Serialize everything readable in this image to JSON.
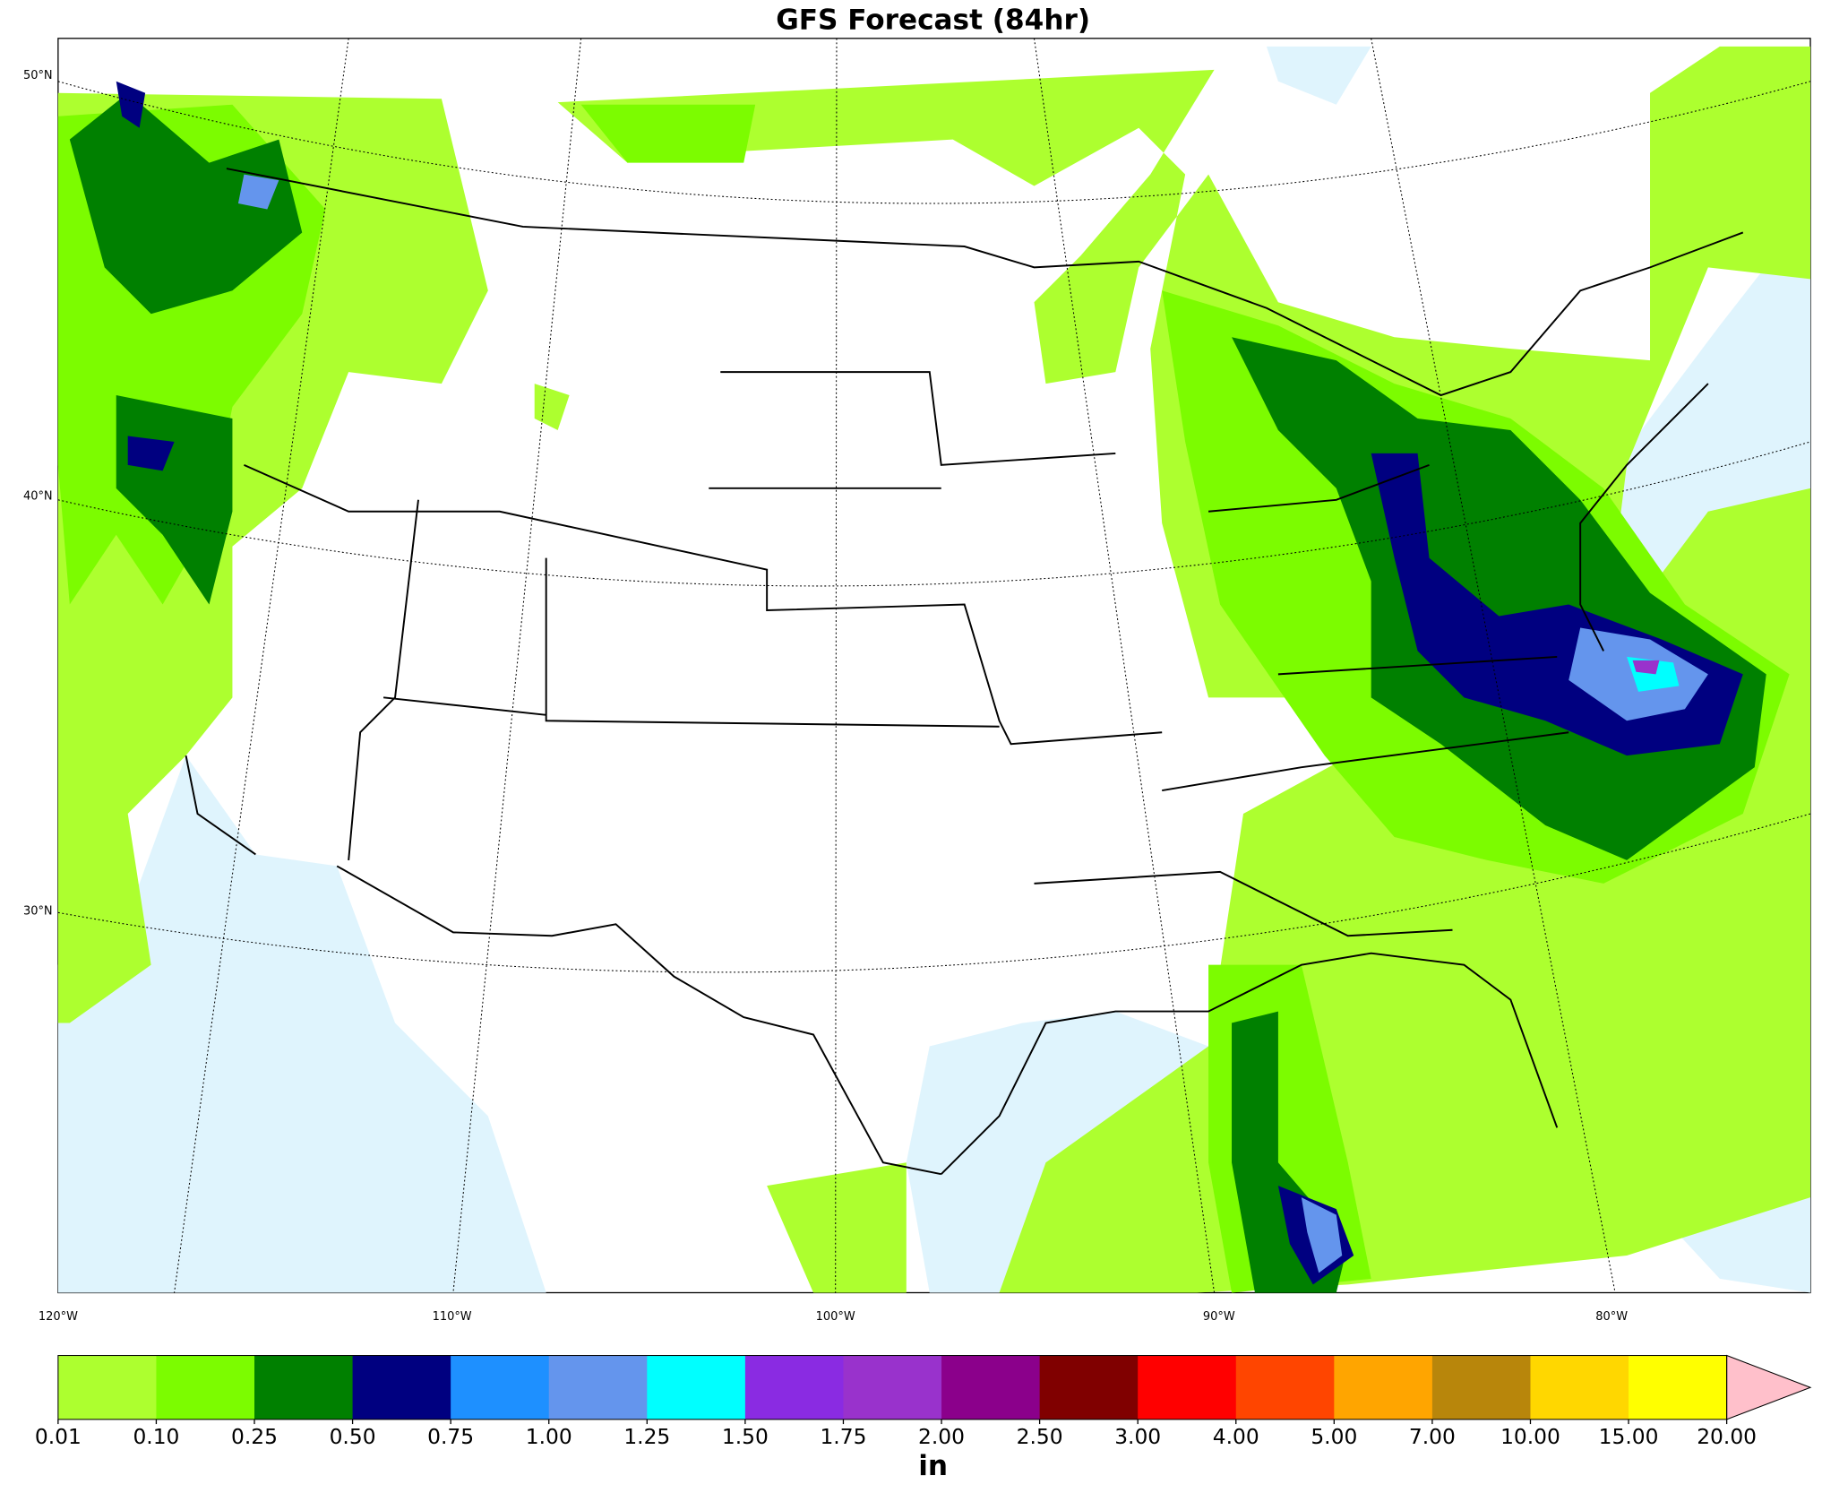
{
  "header": {
    "title": "GFS Forecast (84hr)"
  },
  "map": {
    "lat_labels": [
      "50°N",
      "40°N",
      "30°N"
    ],
    "lon_labels": [
      "120°W",
      "110°W",
      "100°W",
      "90°W",
      "80°W"
    ]
  },
  "colorbar": {
    "unit": "in",
    "levels": [
      "0.01",
      "0.10",
      "0.25",
      "0.50",
      "0.75",
      "1.00",
      "1.25",
      "1.50",
      "1.75",
      "2.00",
      "2.50",
      "3.00",
      "4.00",
      "5.00",
      "7.00",
      "10.00",
      "15.00",
      "20.00"
    ],
    "colors": [
      "#adff2f",
      "#7cfc00",
      "#008000",
      "#000080",
      "#1e90ff",
      "#6495ed",
      "#00ffff",
      "#8a2be2",
      "#9932cc",
      "#8b008b",
      "#800000",
      "#ff0000",
      "#ff4500",
      "#ffa500",
      "#b8860b",
      "#ffd700",
      "#ffff00",
      "#ffc0cb"
    ]
  }
}
